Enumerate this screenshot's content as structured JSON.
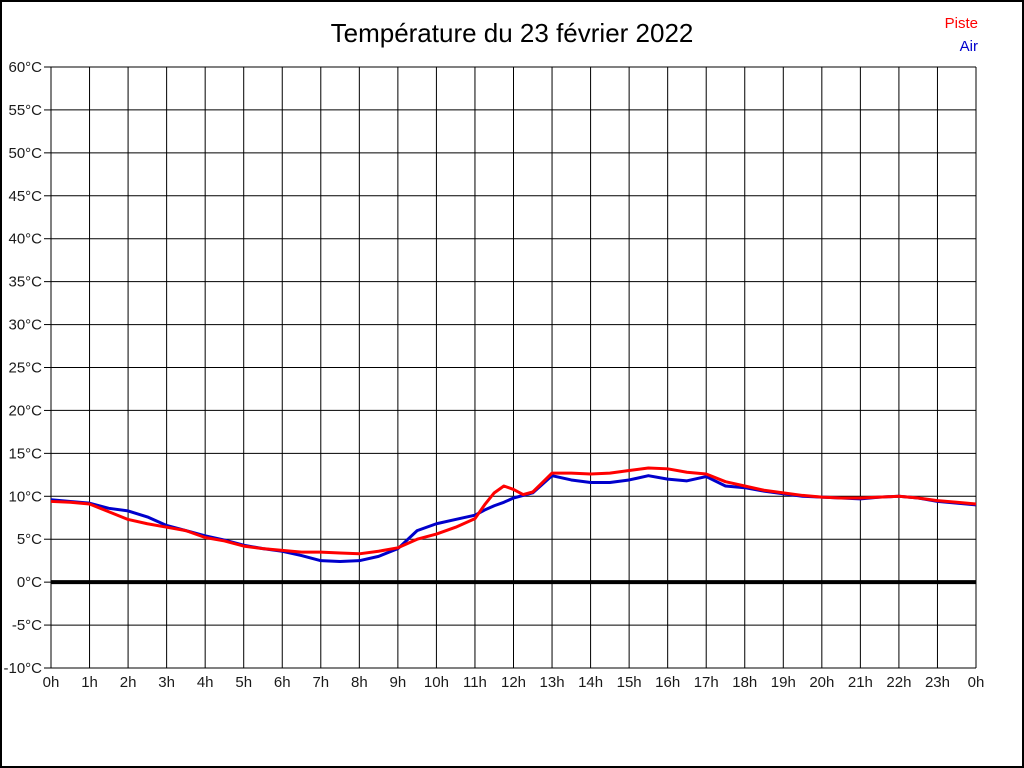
{
  "title": "Température du 23 février 2022",
  "legend": [
    {
      "label": "Piste",
      "color": "#ff0000"
    },
    {
      "label": "Air",
      "color": "#0000cc"
    }
  ],
  "chart_data": {
    "type": "line",
    "title": "Température du 23 février 2022",
    "xlabel": "",
    "ylabel": "",
    "grid": true,
    "legend_position": "top-right",
    "xlim_hours": [
      0,
      24
    ],
    "ylim": [
      -10,
      60
    ],
    "zero_line_value": 0,
    "y_tick_values": [
      60,
      55,
      50,
      45,
      40,
      35,
      30,
      25,
      20,
      15,
      10,
      5,
      0,
      -5,
      -10
    ],
    "y_tick_labels": [
      "60°C",
      "55°C",
      "50°C",
      "45°C",
      "40°C",
      "35°C",
      "30°C",
      "25°C",
      "20°C",
      "15°C",
      "10°C",
      "5°C",
      "0°C",
      "-5°C",
      "-10°C"
    ],
    "x_tick_labels": [
      "0h",
      "1h",
      "2h",
      "3h",
      "4h",
      "5h",
      "6h",
      "7h",
      "8h",
      "9h",
      "10h",
      "11h",
      "12h",
      "13h",
      "14h",
      "15h",
      "16h",
      "17h",
      "18h",
      "19h",
      "20h",
      "21h",
      "22h",
      "23h",
      "0h"
    ],
    "x_hours": [
      0,
      0.5,
      1,
      1.5,
      2,
      2.5,
      3,
      3.5,
      4,
      4.5,
      5,
      5.5,
      6,
      6.5,
      7,
      7.5,
      8,
      8.5,
      9,
      9.5,
      10,
      10.5,
      11,
      11.25,
      11.5,
      11.75,
      12,
      12.25,
      12.5,
      12.75,
      13,
      13.5,
      14,
      14.5,
      15,
      15.5,
      16,
      16.5,
      17,
      17.5,
      18,
      18.5,
      19,
      19.5,
      20,
      20.5,
      21,
      21.5,
      22,
      22.5,
      23,
      23.5,
      24
    ],
    "series": [
      {
        "name": "Piste",
        "color": "#ff0000",
        "values": [
          9.4,
          9.3,
          9.1,
          8.2,
          7.3,
          6.8,
          6.4,
          6.0,
          5.2,
          4.8,
          4.2,
          3.9,
          3.7,
          3.5,
          3.5,
          3.4,
          3.3,
          3.6,
          4.0,
          5.0,
          5.6,
          6.4,
          7.4,
          9.0,
          10.4,
          11.2,
          10.8,
          10.2,
          10.5,
          11.6,
          12.7,
          12.7,
          12.6,
          12.7,
          13.0,
          13.3,
          13.2,
          12.8,
          12.6,
          11.7,
          11.2,
          10.7,
          10.4,
          10.1,
          9.9,
          9.8,
          9.8,
          9.9,
          10.0,
          9.8,
          9.5,
          9.3,
          9.1
        ]
      },
      {
        "name": "Air",
        "color": "#0000cc",
        "values": [
          9.6,
          9.4,
          9.2,
          8.6,
          8.3,
          7.6,
          6.6,
          6.0,
          5.4,
          4.9,
          4.3,
          3.9,
          3.6,
          3.1,
          2.5,
          2.4,
          2.5,
          3.0,
          3.9,
          6.0,
          6.8,
          7.3,
          7.8,
          8.4,
          8.9,
          9.3,
          9.8,
          10.1,
          10.4,
          11.4,
          12.4,
          11.9,
          11.6,
          11.6,
          11.9,
          12.4,
          12.0,
          11.8,
          12.3,
          11.2,
          11.0,
          10.6,
          10.3,
          10.0,
          9.9,
          9.8,
          9.7,
          9.9,
          10.0,
          9.8,
          9.4,
          9.2,
          9.0
        ]
      }
    ]
  }
}
